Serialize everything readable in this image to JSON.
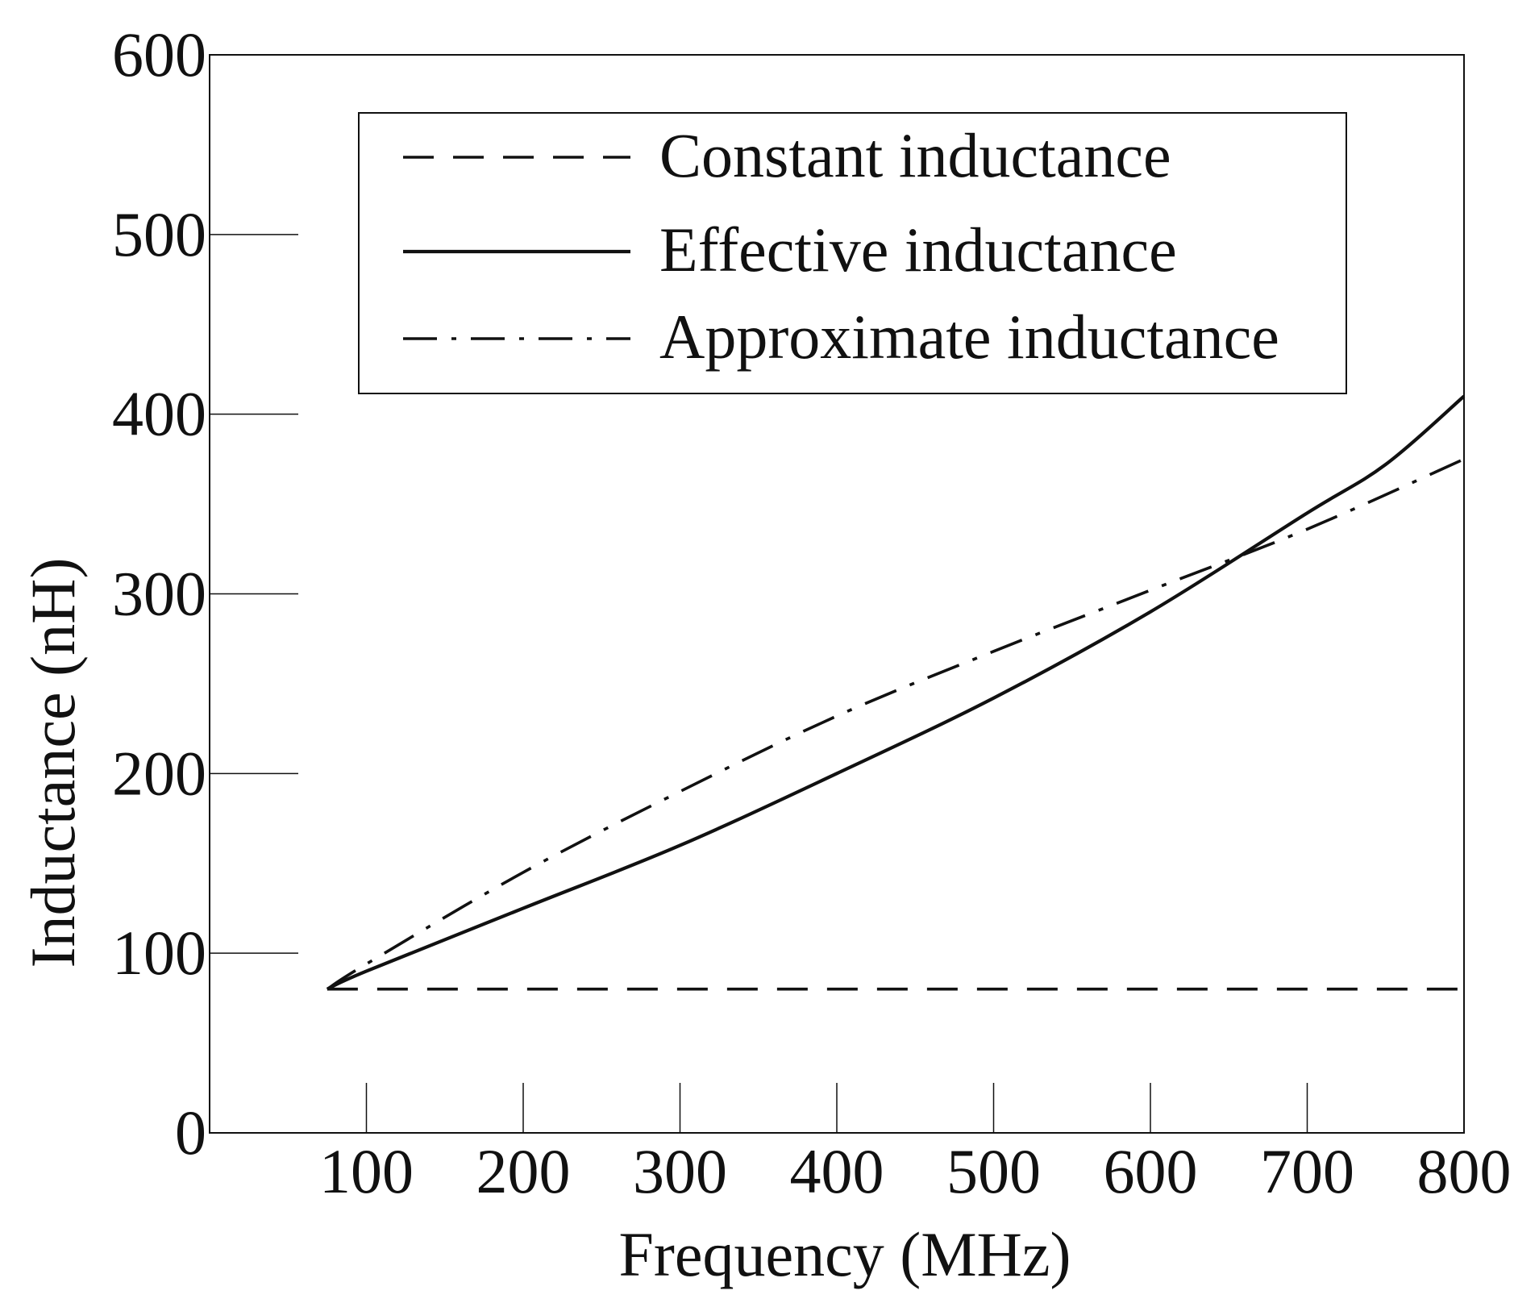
{
  "chart_data": {
    "type": "line",
    "title": "",
    "xlabel": "Frequency (MHz)",
    "ylabel": "Inductance (nH)",
    "xlim": [
      0,
      800
    ],
    "ylim": [
      0,
      600
    ],
    "x_ticks": [
      100,
      200,
      300,
      400,
      500,
      600,
      700,
      800
    ],
    "y_ticks": [
      0,
      100,
      200,
      300,
      400,
      500,
      600
    ],
    "grid": false,
    "legend_position": "top-center",
    "series": [
      {
        "name": "Constant inductance",
        "style": "dashed",
        "x": [
          75,
          800
        ],
        "y": [
          80,
          80
        ]
      },
      {
        "name": "Effective inductance",
        "style": "solid",
        "x": [
          75,
          100,
          200,
          300,
          400,
          500,
          600,
          700,
          750,
          800
        ],
        "y": [
          80,
          90,
          125,
          160,
          200,
          242,
          290,
          345,
          372,
          410
        ]
      },
      {
        "name": "Approximate inductance",
        "style": "dashdot",
        "x": [
          75,
          100,
          200,
          300,
          400,
          500,
          600,
          700,
          800
        ],
        "y": [
          80,
          94,
          145,
          190,
          232,
          268,
          302,
          336,
          375
        ]
      }
    ]
  },
  "colors": {
    "axis": "#111111",
    "line": "#111111",
    "background": "#ffffff"
  }
}
